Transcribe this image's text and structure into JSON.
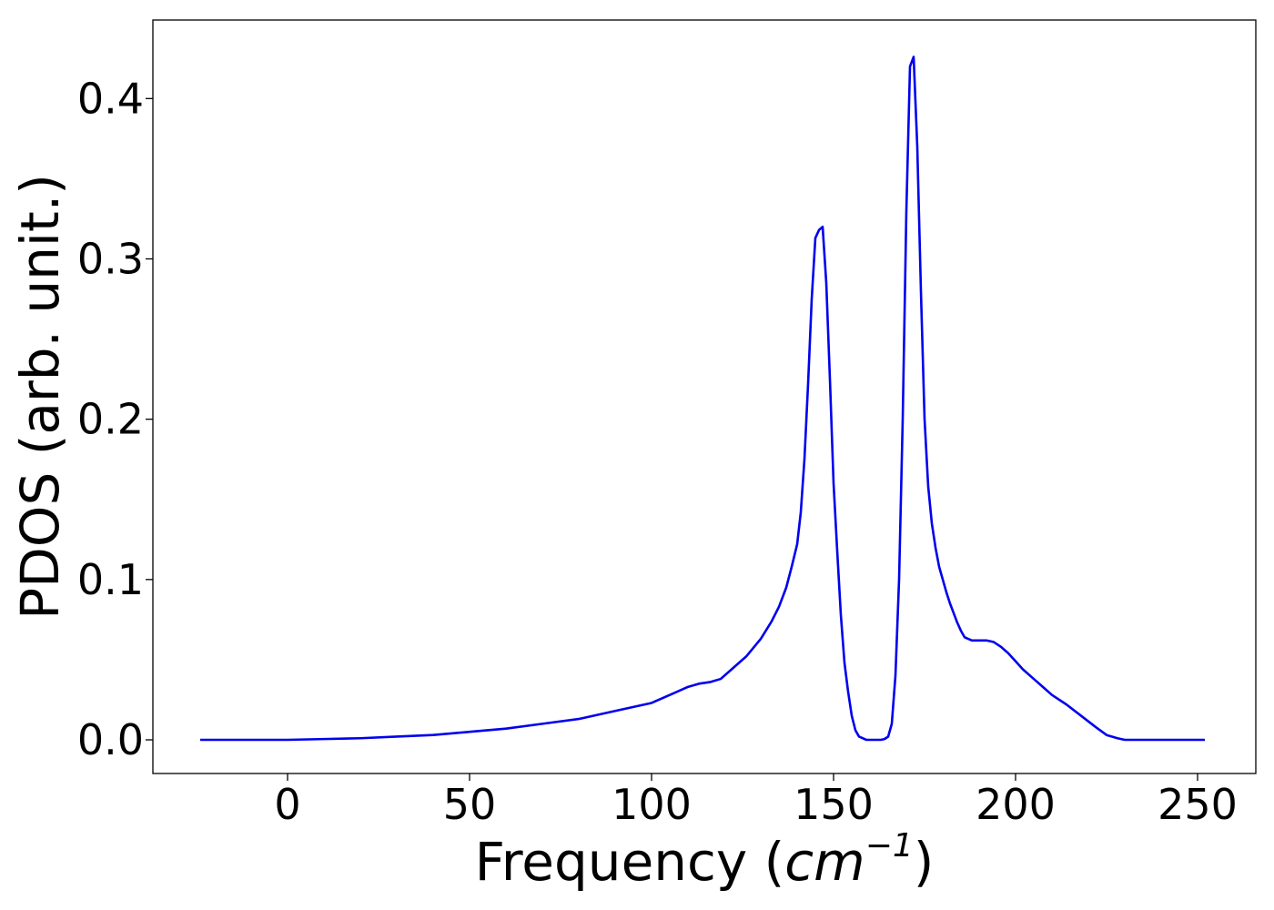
{
  "chart_data": {
    "type": "line",
    "title": "",
    "xlabel": {
      "text": "Frequency (",
      "unit": "cm",
      "superscript": "−1",
      "close": ")"
    },
    "ylabel": "PDOS (arb. unit.)",
    "xlim": [
      -37,
      266
    ],
    "ylim": [
      -0.021,
      0.449
    ],
    "x_ticks": [
      0,
      50,
      100,
      150,
      200,
      250
    ],
    "x_tick_labels": [
      "0",
      "50",
      "100",
      "150",
      "200",
      "250"
    ],
    "y_ticks": [
      0.0,
      0.1,
      0.2,
      0.3,
      0.4
    ],
    "y_tick_labels": [
      "0.0",
      "0.1",
      "0.2",
      "0.3",
      "0.4"
    ],
    "grid": false,
    "legend": "none",
    "series": [
      {
        "color": "#0000ee",
        "x": [
          -24,
          0,
          10,
          20,
          30,
          40,
          50,
          60,
          70,
          80,
          90,
          100,
          106,
          110,
          113,
          116,
          119,
          122,
          126,
          130,
          133,
          135,
          137,
          138.5,
          140,
          141,
          142,
          143,
          144,
          145,
          146,
          147,
          148,
          149,
          150,
          151,
          152,
          153,
          154,
          155,
          156,
          157,
          158,
          159,
          160,
          161,
          162,
          163,
          164,
          165,
          166,
          167,
          168,
          169,
          170,
          171,
          172,
          173,
          174,
          175,
          176,
          177,
          178,
          179,
          180,
          181,
          182,
          183,
          184,
          185,
          186,
          188,
          190,
          192,
          194,
          196,
          198,
          200,
          202,
          204,
          206,
          208,
          210,
          214,
          218,
          222,
          225,
          228,
          230,
          232,
          234,
          236,
          240,
          252
        ],
        "y": [
          0.0,
          0.0,
          0.0005,
          0.001,
          0.002,
          0.003,
          0.005,
          0.007,
          0.01,
          0.013,
          0.018,
          0.023,
          0.029,
          0.033,
          0.035,
          0.036,
          0.038,
          0.044,
          0.052,
          0.063,
          0.074,
          0.083,
          0.095,
          0.108,
          0.122,
          0.142,
          0.175,
          0.222,
          0.275,
          0.313,
          0.318,
          0.32,
          0.285,
          0.225,
          0.16,
          0.118,
          0.078,
          0.048,
          0.03,
          0.015,
          0.006,
          0.002,
          0.001,
          0.0,
          0.0,
          0.0,
          0.0,
          0.0,
          0.0005,
          0.002,
          0.01,
          0.04,
          0.1,
          0.2,
          0.33,
          0.42,
          0.426,
          0.37,
          0.28,
          0.2,
          0.158,
          0.135,
          0.12,
          0.108,
          0.1,
          0.092,
          0.085,
          0.079,
          0.073,
          0.068,
          0.064,
          0.062,
          0.062,
          0.062,
          0.061,
          0.058,
          0.054,
          0.049,
          0.044,
          0.04,
          0.036,
          0.032,
          0.028,
          0.022,
          0.015,
          0.008,
          0.003,
          0.001,
          0.0,
          0.0,
          0.0,
          0.0,
          0.0,
          0.0
        ]
      }
    ]
  }
}
